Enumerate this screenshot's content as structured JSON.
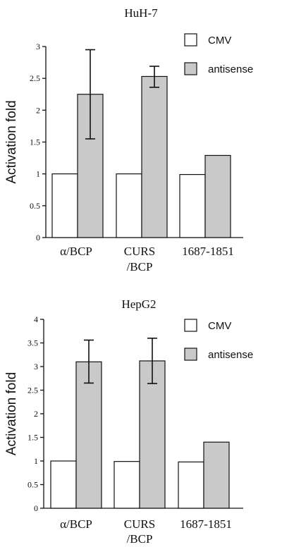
{
  "chart_data": [
    {
      "type": "bar",
      "title": "HuH-7",
      "ylabel": "Activation fold",
      "xlabel": "",
      "ylim": [
        0,
        3
      ],
      "yticks": [
        "0",
        "0.5",
        "1",
        "1.5",
        "2",
        "2.5",
        "3"
      ],
      "ytick_values": [
        0,
        0.5,
        1,
        1.5,
        2,
        2.5,
        3
      ],
      "categories": [
        [
          "α/BCP"
        ],
        [
          "CURS",
          "/BCP"
        ],
        [
          "1687-1851"
        ]
      ],
      "series": [
        {
          "name": "CMV",
          "values": [
            1.0,
            1.0,
            0.99
          ],
          "errors": [
            null,
            null,
            null
          ],
          "color": "#ffffff"
        },
        {
          "name": "antisense",
          "values": [
            2.25,
            2.53,
            1.29
          ],
          "errors": [
            [
              1.55,
              2.95
            ],
            [
              2.36,
              2.69
            ],
            null
          ],
          "color": "#c9c9c9"
        }
      ],
      "legend": "top-right"
    },
    {
      "type": "bar",
      "title": "HepG2",
      "ylabel": "Activation fold",
      "xlabel": "",
      "ylim": [
        0,
        4
      ],
      "yticks": [
        "0",
        "0.5",
        "1",
        "1.5",
        "2",
        "2.5",
        "3",
        "3.5",
        "4"
      ],
      "ytick_values": [
        0,
        0.5,
        1,
        1.5,
        2,
        2.5,
        3,
        3.5,
        4
      ],
      "categories": [
        [
          "α/BCP"
        ],
        [
          "CURS",
          "/BCP"
        ],
        [
          "1687-1851"
        ]
      ],
      "series": [
        {
          "name": "CMV",
          "values": [
            1.0,
            0.99,
            0.98
          ],
          "errors": [
            null,
            null,
            null
          ],
          "color": "#ffffff"
        },
        {
          "name": "antisense",
          "values": [
            3.1,
            3.12,
            1.4
          ],
          "errors": [
            [
              2.65,
              3.56
            ],
            [
              2.64,
              3.6
            ],
            null
          ],
          "color": "#c9c9c9"
        }
      ],
      "legend": "top-right"
    }
  ]
}
